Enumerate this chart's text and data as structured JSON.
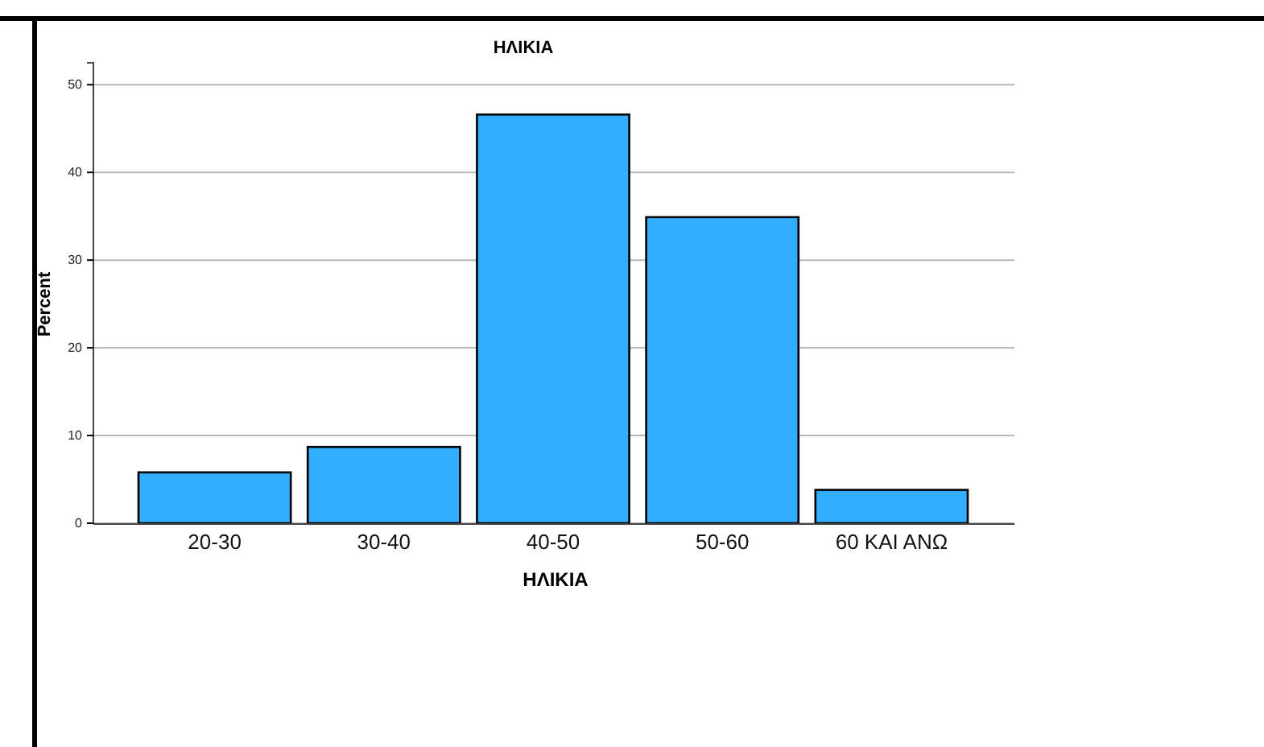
{
  "chart_data": {
    "type": "bar",
    "title": "ΗΛΙΚΙΑ",
    "xlabel": "ΗΛΙΚΙΑ",
    "ylabel": "Percent",
    "categories": [
      "20-30",
      "30-40",
      "40-50",
      "50-60",
      "60 ΚΑΙ ΑΝΩ"
    ],
    "values": [
      5.8,
      8.7,
      46.6,
      34.9,
      3.8
    ],
    "color": "#33adff",
    "ylim": [
      0,
      52.5
    ],
    "yticks": [
      0,
      10,
      20,
      30,
      40,
      50
    ],
    "grid": "y"
  }
}
